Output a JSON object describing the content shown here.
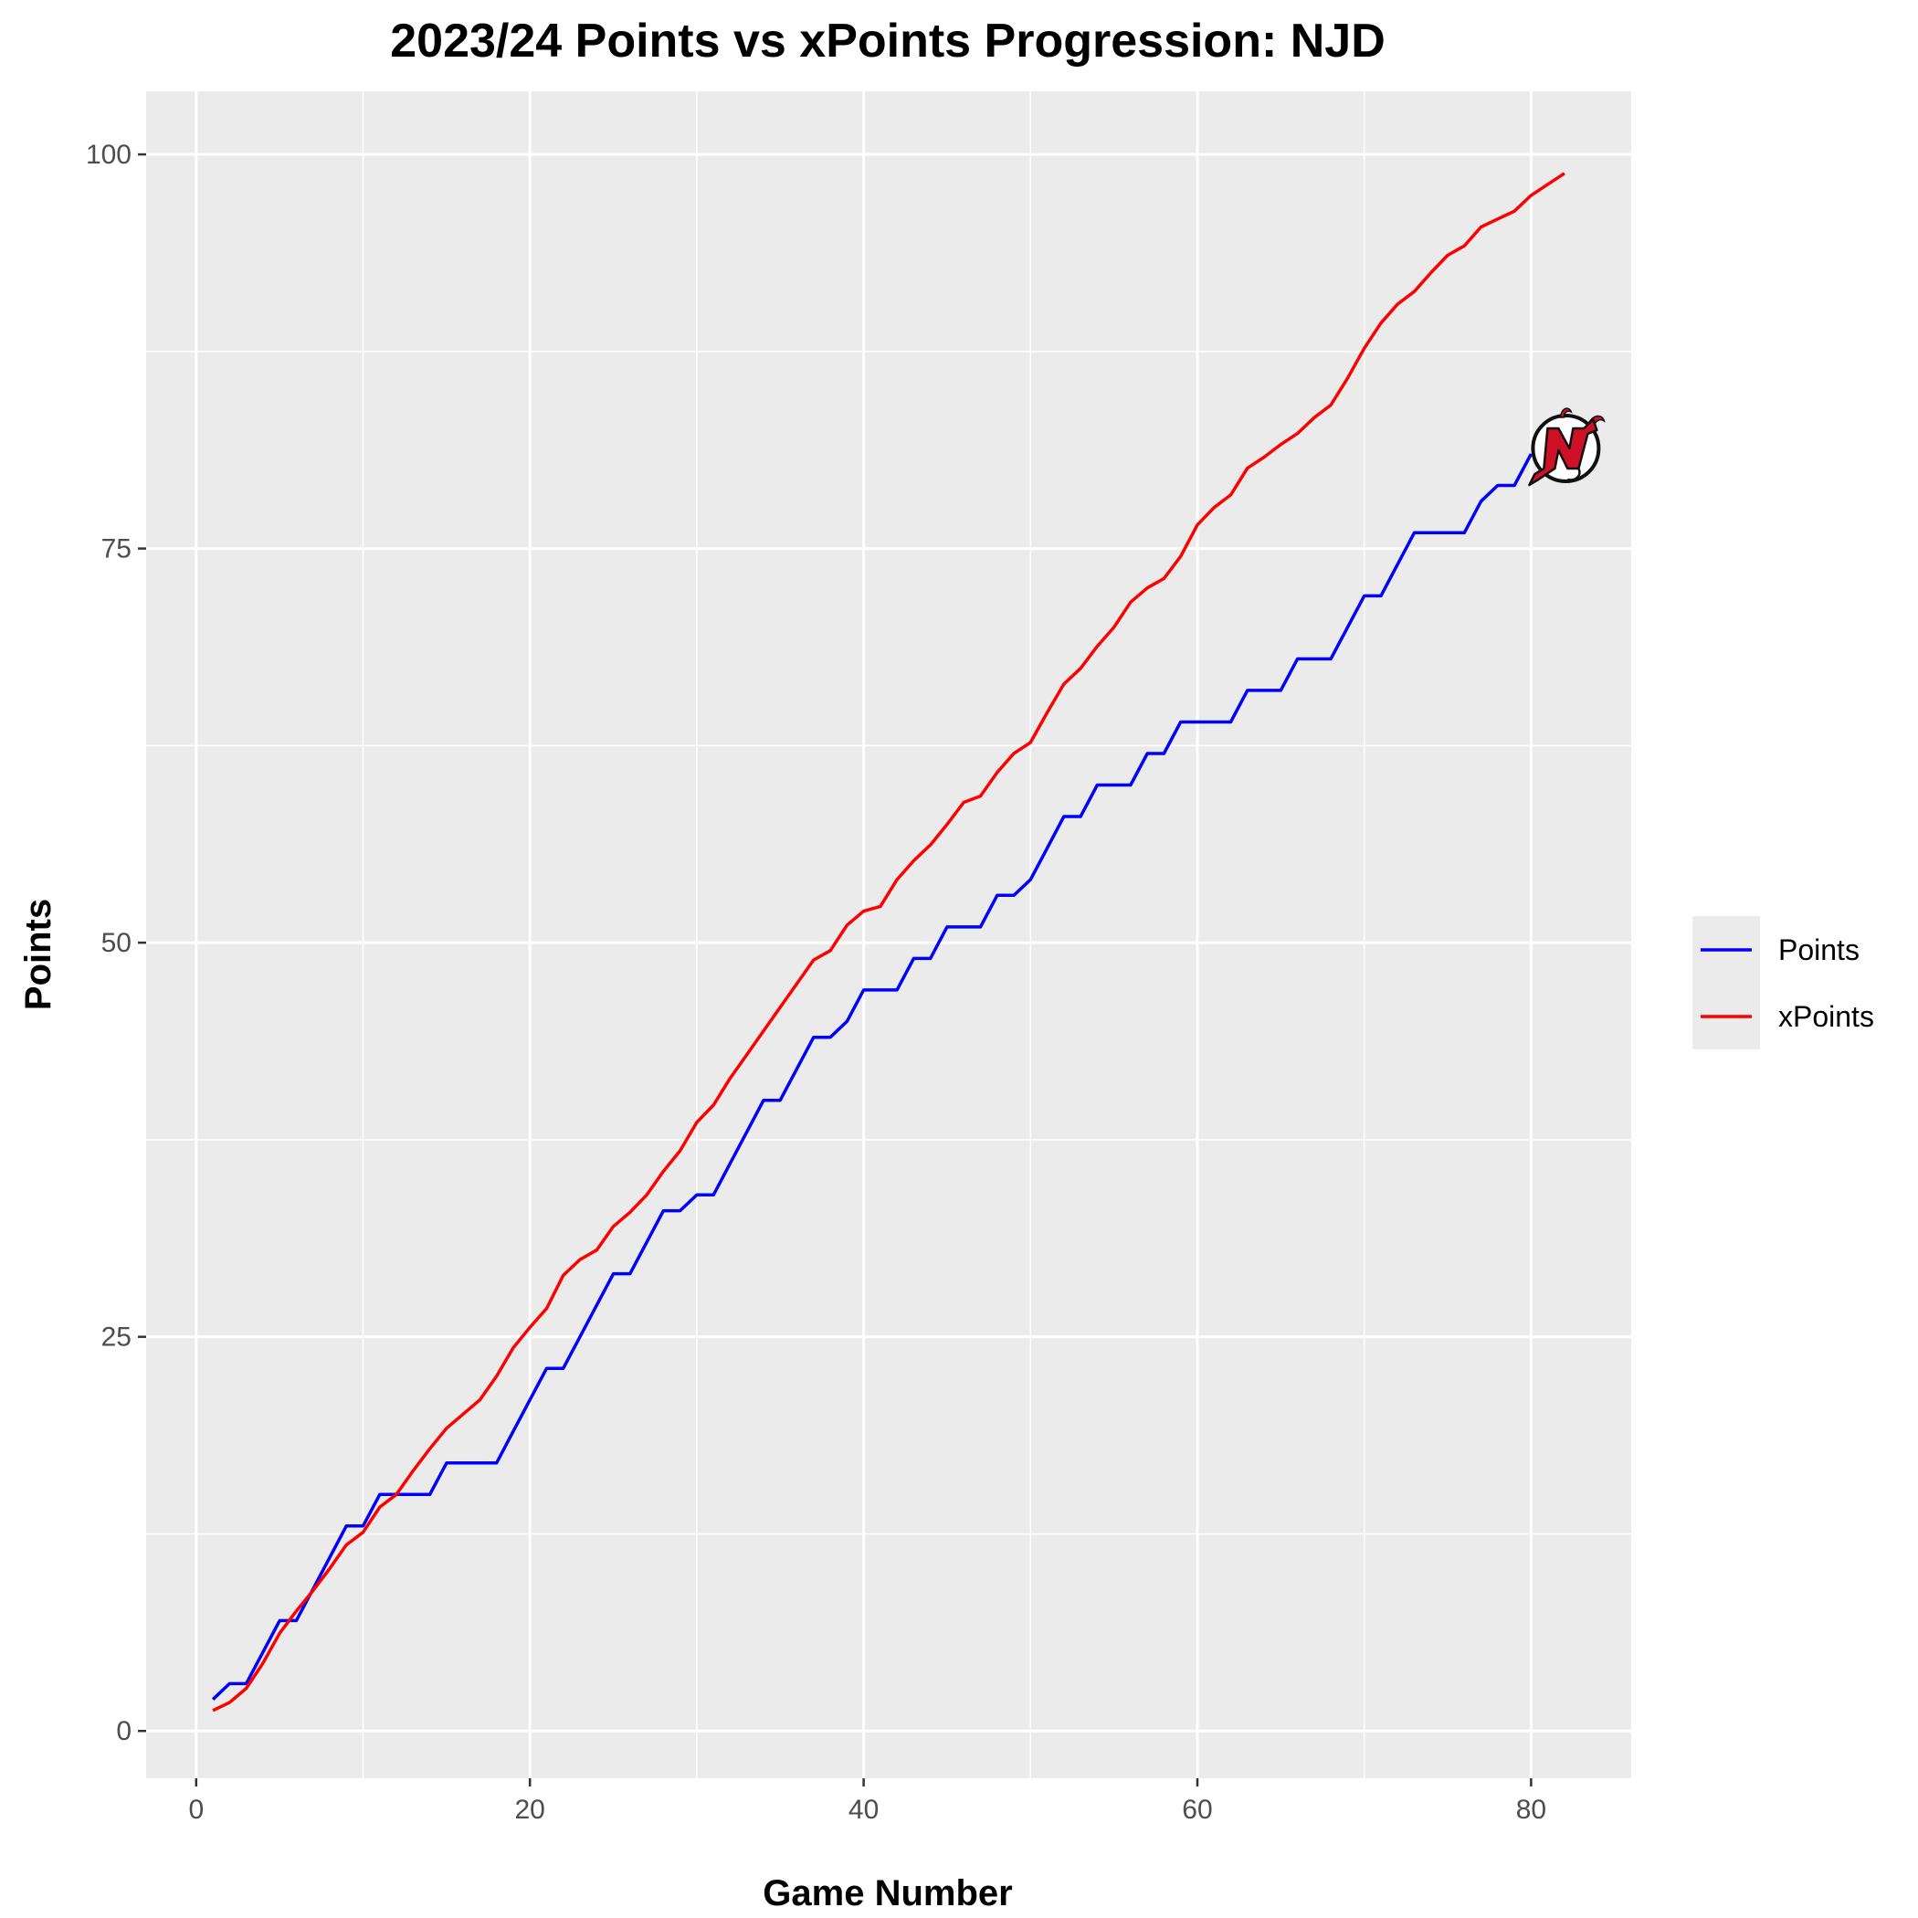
{
  "chart_data": {
    "type": "line",
    "title": "2023/24 Points vs xPoints Progression: NJD",
    "xlabel": "Game Number",
    "ylabel": "Points",
    "xlim": [
      -3,
      86
    ],
    "ylim": [
      -3,
      104
    ],
    "x_ticks": [
      0,
      20,
      40,
      60,
      80
    ],
    "y_ticks": [
      0,
      25,
      50,
      75,
      100
    ],
    "x_minor": [
      10,
      30,
      50,
      70
    ],
    "y_minor": [
      12.5,
      37.5,
      62.5,
      87.5
    ],
    "grid": true,
    "background": "#ebebeb",
    "legend_position": "right",
    "x": [
      1,
      2,
      3,
      4,
      5,
      6,
      7,
      8,
      9,
      10,
      11,
      12,
      13,
      14,
      15,
      16,
      17,
      18,
      19,
      20,
      21,
      22,
      23,
      24,
      25,
      26,
      27,
      28,
      29,
      30,
      31,
      32,
      33,
      34,
      35,
      36,
      37,
      38,
      39,
      40,
      41,
      42,
      43,
      44,
      45,
      46,
      47,
      48,
      49,
      50,
      51,
      52,
      53,
      54,
      55,
      56,
      57,
      58,
      59,
      60,
      61,
      62,
      63,
      64,
      65,
      66,
      67,
      68,
      69,
      70,
      71,
      72,
      73,
      74,
      75,
      76,
      77,
      78,
      79,
      80,
      81,
      82
    ],
    "series": [
      {
        "name": "Points",
        "color": "#0000ff",
        "values": [
          2,
          3,
          3,
          5,
          7,
          7,
          9,
          11,
          13,
          13,
          15,
          15,
          15,
          15,
          17,
          17,
          17,
          17,
          19,
          21,
          23,
          23,
          25,
          27,
          29,
          29,
          31,
          33,
          33,
          34,
          34,
          36,
          38,
          40,
          40,
          42,
          44,
          44,
          45,
          47,
          47,
          47,
          49,
          49,
          51,
          51,
          51,
          53,
          53,
          54,
          56,
          58,
          58,
          60,
          60,
          60,
          62,
          62,
          64,
          64,
          64,
          64,
          66,
          66,
          66,
          68,
          68,
          68,
          70,
          72,
          72,
          74,
          76,
          76,
          76,
          76,
          78,
          79,
          79,
          81,
          null,
          null
        ]
      },
      {
        "name": "xPoints",
        "color": "#ff0000",
        "values": [
          1.3,
          1.8,
          2.7,
          4.3,
          6.2,
          7.6,
          8.9,
          10.3,
          11.8,
          12.6,
          14.2,
          15,
          16.5,
          17.9,
          19.2,
          20.1,
          21,
          22.5,
          24.3,
          25.6,
          26.8,
          28.9,
          29.9,
          30.5,
          32,
          32.9,
          34,
          35.5,
          36.8,
          38.6,
          39.7,
          41.4,
          42.9,
          44.4,
          45.9,
          47.4,
          48.9,
          49.5,
          51.1,
          52,
          52.3,
          54,
          55.2,
          56.2,
          57.5,
          58.9,
          59.3,
          60.8,
          62,
          62.7,
          64.6,
          66.4,
          67.4,
          68.8,
          70,
          71.6,
          72.5,
          73.1,
          74.5,
          76.5,
          77.6,
          78.4,
          80.1,
          80.8,
          81.6,
          82.3,
          83.3,
          84.1,
          85.8,
          87.7,
          89.3,
          90.5,
          91.3,
          92.5,
          93.6,
          94.2,
          95.4,
          95.9,
          96.4,
          97.4,
          98.1,
          98.8
        ]
      }
    ]
  },
  "logo": {
    "name": "New Jersey Devils logo",
    "colors": {
      "red": "#ce1126",
      "black": "#111111",
      "white": "#ffffff"
    }
  }
}
